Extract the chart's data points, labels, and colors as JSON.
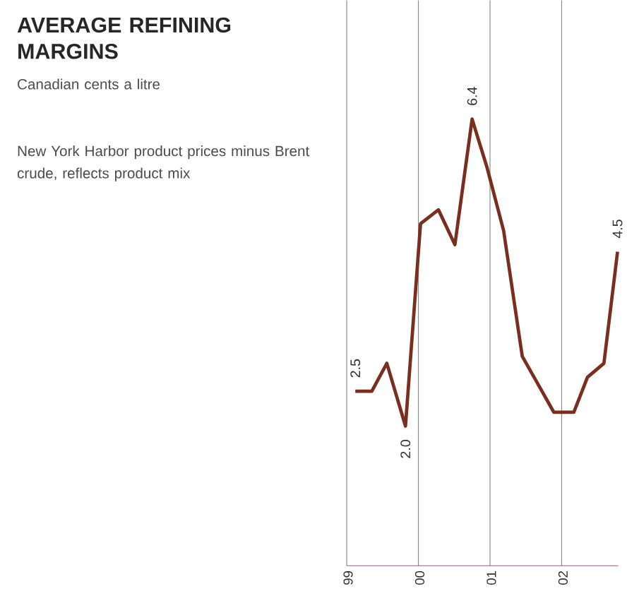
{
  "chart_data": {
    "type": "line",
    "title": "AVERAGE REFINING MARGINS",
    "subtitle": "Canadian cents a litre",
    "annotations": [
      "New York Harbor product prices minus Brent crude, reflects product mix"
    ],
    "x": [
      1999.12,
      1999.35,
      1999.56,
      1999.82,
      2000.03,
      2000.28,
      2000.51,
      2000.75,
      2000.96,
      2001.19,
      2001.45,
      2001.89,
      2002.17,
      2002.36,
      2002.59,
      2002.78
    ],
    "series": [
      {
        "color": "#7a2e1e",
        "values": [
          2.5,
          2.5,
          2.9,
          2.0,
          4.9,
          5.1,
          4.6,
          6.4,
          5.7,
          4.8,
          3.0,
          2.2,
          2.2,
          2.7,
          2.9,
          4.5
        ],
        "value_labels": [
          "2.5",
          null,
          null,
          "2.0",
          null,
          null,
          null,
          "6.4",
          null,
          null,
          null,
          null,
          null,
          null,
          null,
          "4.5"
        ]
      }
    ],
    "xlim": [
      1999,
      2002.79
    ],
    "ylim": [
      0,
      8.1
    ],
    "xticks": [
      {
        "value": 1999,
        "label": "99"
      },
      {
        "value": 2000,
        "label": "00"
      },
      {
        "value": 2001,
        "label": "01"
      },
      {
        "value": 2002,
        "label": "02"
      }
    ],
    "grid": "x",
    "tick_labels": "x",
    "marker": "none",
    "line_style": "solid"
  }
}
